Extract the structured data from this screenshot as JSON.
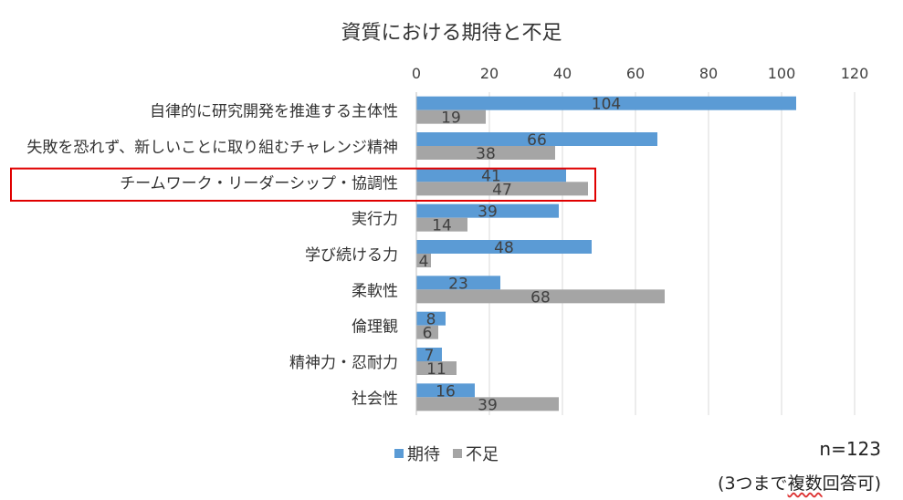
{
  "chart_data": {
    "type": "bar",
    "orientation": "horizontal",
    "title": "資質における期待と不足",
    "categories": [
      "自律的に研究開発を推進する主体性",
      "失敗を恐れず、新しいことに取り組むチャレンジ精神",
      "チームワーク・リーダーシップ・協調性",
      "実行力",
      "学び続ける力",
      "柔軟性",
      "倫理観",
      "精神力・忍耐力",
      "社会性"
    ],
    "series": [
      {
        "name": "期待",
        "color": "#5b9bd5",
        "values": [
          104,
          66,
          41,
          39,
          48,
          23,
          8,
          7,
          16
        ]
      },
      {
        "name": "不足",
        "color": "#a5a5a5",
        "values": [
          19,
          38,
          47,
          14,
          4,
          68,
          6,
          11,
          39
        ]
      }
    ],
    "xlim": [
      0,
      120
    ],
    "xticks": [
      "0",
      "20",
      "40",
      "60",
      "80",
      "100",
      "120"
    ],
    "grid": true,
    "legend_position": "bottom",
    "highlight_category_index": 2,
    "highlight_color": "#e00000"
  },
  "notes": {
    "n": "n=123",
    "multi_prefix": "(3つまで",
    "multi_marked": "複数",
    "multi_suffix": "回答可)"
  }
}
